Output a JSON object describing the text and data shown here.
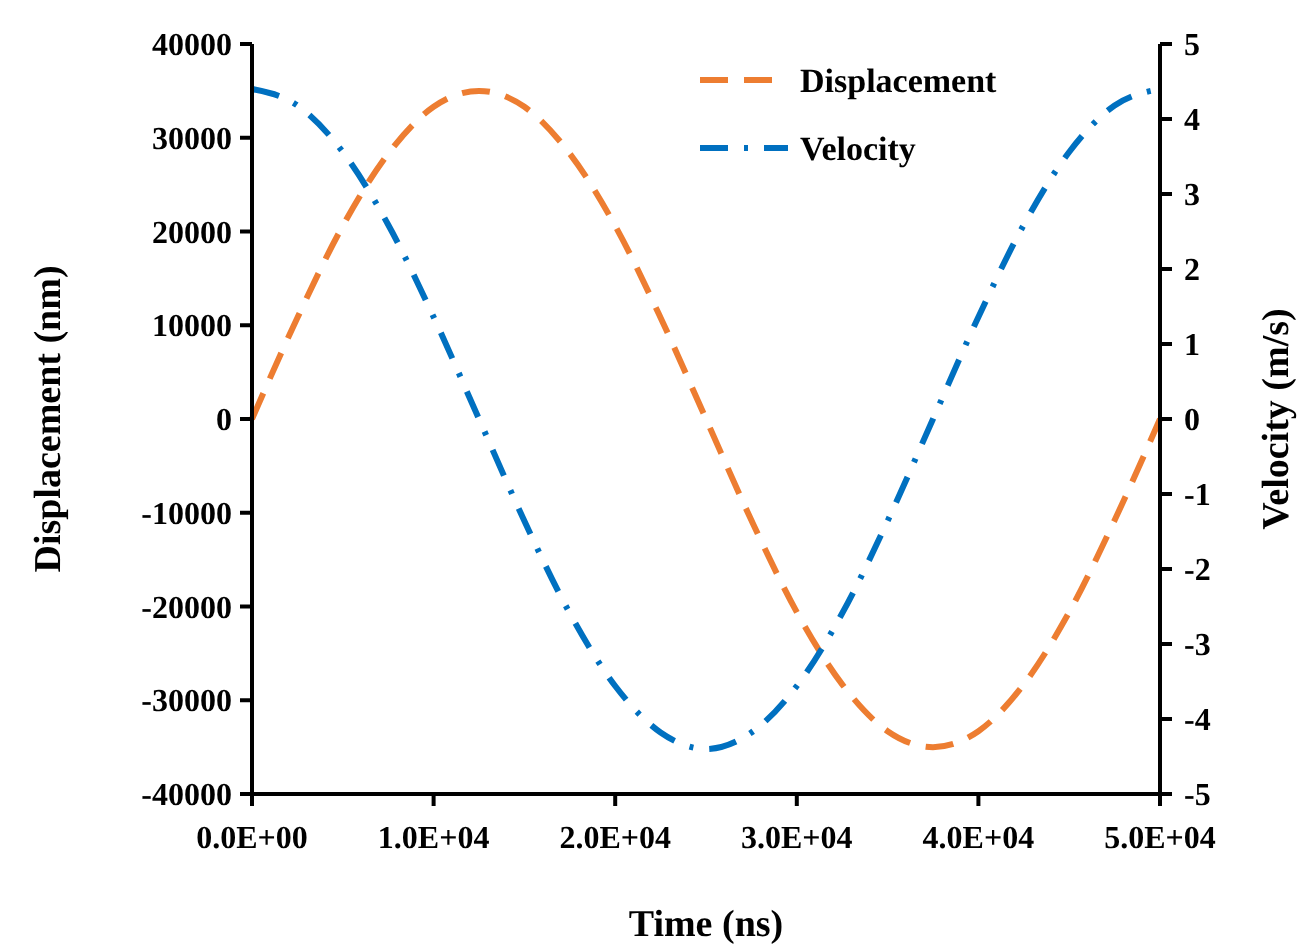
{
  "chart_data": {
    "type": "line",
    "xlabel": "Time (ns)",
    "ylabel": "Displacement (nm)",
    "y2label": "Velocity (m/s)",
    "x": [
      0,
      2500,
      5000,
      7500,
      10000,
      12500,
      15000,
      17500,
      20000,
      22500,
      25000,
      27500,
      30000,
      32500,
      35000,
      37500,
      40000,
      42500,
      45000,
      47500,
      50000
    ],
    "series": [
      {
        "name": "Displacement",
        "color": "#ed7d31",
        "line_style": "dashed",
        "values": [
          0,
          10800,
          20600,
          28300,
          33300,
          35000,
          33300,
          28300,
          20600,
          10800,
          0,
          -10800,
          -20600,
          -28300,
          -33300,
          -35000,
          -33300,
          -28300,
          -20600,
          -10800,
          0
        ]
      },
      {
        "name": "Velocity",
        "color": "#0070c0",
        "line_style": "dashdot",
        "axis": "y2",
        "values": [
          4.4,
          4.18,
          3.56,
          2.59,
          1.36,
          0,
          -1.36,
          -2.59,
          -3.56,
          -4.18,
          -4.4,
          -4.18,
          -3.56,
          -2.59,
          -1.36,
          0,
          1.36,
          2.59,
          3.56,
          4.18,
          4.4
        ]
      }
    ],
    "xlim": [
      0,
      50000
    ],
    "xticks": [
      {
        "value": 0,
        "label": "0.0E+00"
      },
      {
        "value": 10000,
        "label": "1.0E+04"
      },
      {
        "value": 20000,
        "label": "2.0E+04"
      },
      {
        "value": 30000,
        "label": "3.0E+04"
      },
      {
        "value": 40000,
        "label": "4.0E+04"
      },
      {
        "value": 50000,
        "label": "5.0E+04"
      }
    ],
    "ylim": [
      -40000,
      40000
    ],
    "yticks": [
      -40000,
      -30000,
      -20000,
      -10000,
      0,
      10000,
      20000,
      30000,
      40000
    ],
    "y2lim": [
      -5,
      5
    ],
    "y2ticks": [
      -5,
      -4,
      -3,
      -2,
      -1,
      0,
      1,
      2,
      3,
      4,
      5
    ],
    "legend": "top right",
    "grid": false,
    "marker": "none"
  }
}
